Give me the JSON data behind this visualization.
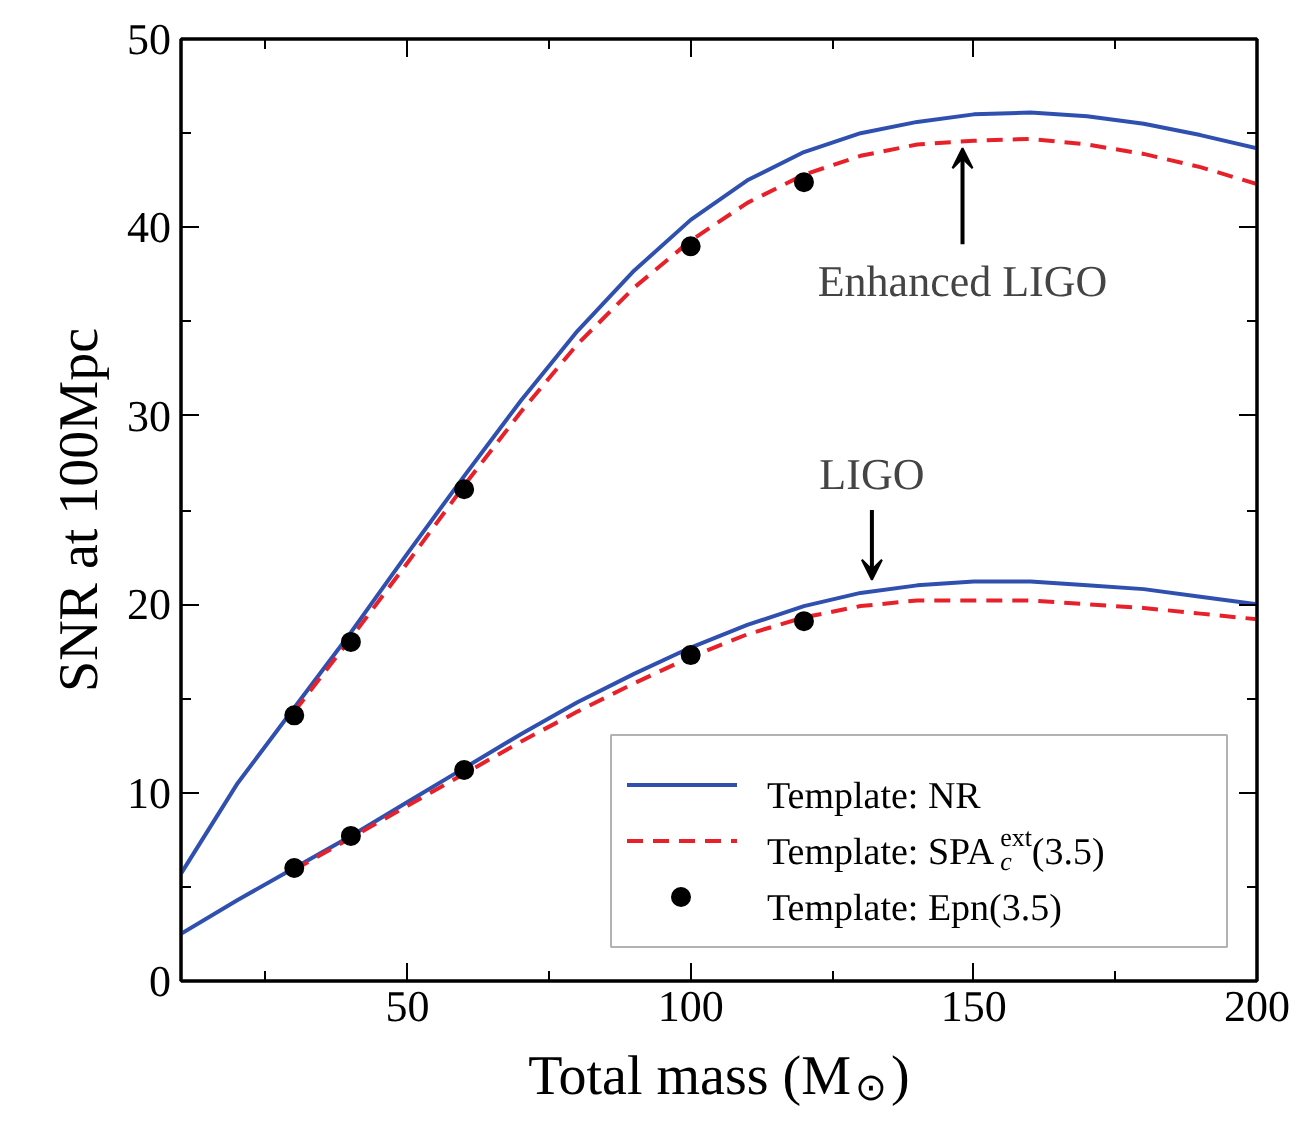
{
  "chart_data": {
    "type": "line",
    "xlabel": "Total mass (M$_{⊙}$)",
    "ylabel": "SNR at 100Mpc",
    "xlim": [
      10,
      200
    ],
    "ylim": [
      0,
      50
    ],
    "xticks": [
      {
        "value": 25,
        "label": null
      },
      50,
      {
        "value": 75,
        "label": null
      },
      100,
      {
        "value": 125,
        "label": null
      },
      150,
      {
        "value": 175,
        "label": null
      },
      200
    ],
    "yticks": [
      0,
      {
        "value": 5,
        "label": null
      },
      10,
      {
        "value": 15,
        "label": null
      },
      20,
      {
        "value": 25,
        "label": null
      },
      30,
      {
        "value": 35,
        "label": null
      },
      40,
      {
        "value": 45,
        "label": null
      },
      50
    ],
    "grid": false,
    "legend": "bottom right",
    "series": [
      {
        "name": "Template: NR",
        "color": "#3050b0",
        "line_style": "solid",
        "x": [
          10,
          20,
          30,
          40,
          50,
          60,
          70,
          80,
          90,
          100,
          110,
          120,
          130,
          140,
          150,
          160,
          170,
          180,
          190,
          200
        ],
        "values": [
          5.7,
          10.5,
          14.5,
          18.5,
          22.7,
          26.8,
          30.8,
          34.5,
          37.7,
          40.4,
          42.5,
          44.0,
          45.0,
          45.6,
          46.0,
          46.1,
          45.9,
          45.5,
          44.9,
          44.2
        ]
      },
      {
        "name": "Template: SPA$_{c}$$^{ext}$(3.5)",
        "color": "#e8202a",
        "line_style": "dashed",
        "x": [
          30,
          40,
          50,
          60,
          70,
          80,
          90,
          100,
          110,
          120,
          130,
          140,
          150,
          160,
          170,
          180,
          190,
          200
        ],
        "values": [
          14.3,
          18.2,
          22.2,
          26.3,
          30.2,
          33.8,
          36.8,
          39.3,
          41.3,
          42.8,
          43.8,
          44.4,
          44.6,
          44.7,
          44.4,
          43.9,
          43.2,
          42.3
        ]
      },
      {
        "name": "Template: Epn(3.5)",
        "type": "scatter",
        "marker": "circle",
        "color": "#000000",
        "x": [
          30,
          40,
          60,
          100,
          120
        ],
        "values": [
          14.1,
          18.0,
          26.1,
          39.0,
          42.4
        ]
      },
      {
        "color": "#3050b0",
        "line_style": "solid",
        "x": [
          10,
          20,
          30,
          40,
          50,
          60,
          70,
          80,
          90,
          100,
          110,
          120,
          130,
          140,
          150,
          160,
          170,
          180,
          190,
          200
        ],
        "values": [
          2.5,
          4.3,
          6.0,
          7.7,
          9.5,
          11.3,
          13.1,
          14.8,
          16.3,
          17.7,
          18.9,
          19.9,
          20.6,
          21.0,
          21.2,
          21.2,
          21.0,
          20.8,
          20.4,
          20.0
        ]
      },
      {
        "color": "#e8202a",
        "line_style": "dashed",
        "x": [
          30,
          40,
          50,
          60,
          70,
          80,
          90,
          100,
          110,
          120,
          130,
          140,
          150,
          160,
          170,
          180,
          190,
          200
        ],
        "values": [
          5.9,
          7.6,
          9.3,
          11.0,
          12.7,
          14.3,
          15.8,
          17.2,
          18.4,
          19.3,
          19.9,
          20.2,
          20.2,
          20.2,
          20.0,
          19.8,
          19.5,
          19.2
        ]
      },
      {
        "type": "scatter",
        "marker": "circle",
        "color": "#000000",
        "x": [
          30,
          40,
          60,
          100,
          120
        ],
        "values": [
          6.0,
          7.7,
          11.2,
          17.3,
          19.1
        ]
      }
    ],
    "annotations": [
      {
        "text": "Enhanced LIGO",
        "x": 148,
        "y": 44.6
      },
      {
        "text": "LIGO",
        "x": 132,
        "y": 20.8
      }
    ]
  }
}
